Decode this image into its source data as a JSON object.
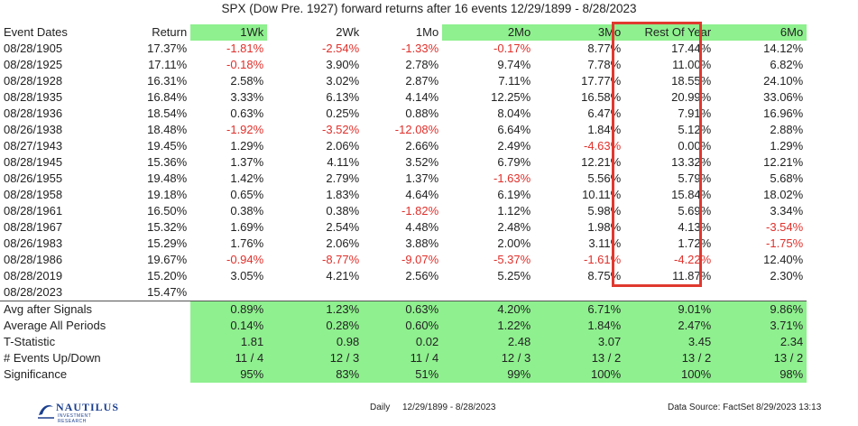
{
  "title": "SPX (Dow Pre. 1927) forward returns after 16 events 12/29/1899 - 8/28/2023",
  "colors": {
    "highlight_fill": "#8ef08e",
    "negative": "#e0302b",
    "box": "#e0392f",
    "brand": "#1b3f8f"
  },
  "chart_data": {
    "type": "table",
    "title": "SPX (Dow Pre. 1927) forward returns after 16 events 12/29/1899 - 8/28/2023",
    "columns": [
      "Event Dates",
      "Return",
      "1Wk",
      "2Wk",
      "1Mo",
      "2Mo",
      "3Mo",
      "Rest Of Year",
      "6Mo"
    ],
    "rows": [
      [
        "08/28/1905",
        "17.37%",
        "-1.81%",
        "-2.54%",
        "-1.33%",
        "-0.17%",
        "8.77%",
        "17.44%",
        "14.12%"
      ],
      [
        "08/28/1925",
        "17.11%",
        "-0.18%",
        "3.90%",
        "2.78%",
        "9.74%",
        "7.78%",
        "11.00%",
        "6.82%"
      ],
      [
        "08/28/1928",
        "16.31%",
        "2.58%",
        "3.02%",
        "2.87%",
        "7.11%",
        "17.77%",
        "18.55%",
        "24.10%"
      ],
      [
        "08/28/1935",
        "16.84%",
        "3.33%",
        "6.13%",
        "4.14%",
        "12.25%",
        "16.58%",
        "20.99%",
        "33.06%"
      ],
      [
        "08/28/1936",
        "18.54%",
        "0.63%",
        "0.25%",
        "0.88%",
        "8.04%",
        "6.47%",
        "7.91%",
        "16.96%"
      ],
      [
        "08/26/1938",
        "18.48%",
        "-1.92%",
        "-3.52%",
        "-12.08%",
        "6.64%",
        "1.84%",
        "5.12%",
        "2.88%"
      ],
      [
        "08/27/1943",
        "19.45%",
        "1.29%",
        "2.06%",
        "2.66%",
        "2.49%",
        "-4.63%",
        "0.00%",
        "1.29%"
      ],
      [
        "08/28/1945",
        "15.36%",
        "1.37%",
        "4.11%",
        "3.52%",
        "6.79%",
        "12.21%",
        "13.32%",
        "12.21%"
      ],
      [
        "08/26/1955",
        "19.48%",
        "1.42%",
        "2.79%",
        "1.37%",
        "-1.63%",
        "5.56%",
        "5.79%",
        "5.68%"
      ],
      [
        "08/28/1958",
        "19.18%",
        "0.65%",
        "1.83%",
        "4.64%",
        "6.19%",
        "10.11%",
        "15.84%",
        "18.02%"
      ],
      [
        "08/28/1961",
        "16.50%",
        "0.38%",
        "0.38%",
        "-1.82%",
        "1.12%",
        "5.98%",
        "5.69%",
        "3.34%"
      ],
      [
        "08/28/1967",
        "15.32%",
        "1.69%",
        "2.54%",
        "4.48%",
        "2.48%",
        "1.98%",
        "4.13%",
        "-3.54%"
      ],
      [
        "08/26/1983",
        "15.29%",
        "1.76%",
        "2.06%",
        "3.88%",
        "2.00%",
        "3.11%",
        "1.72%",
        "-1.75%"
      ],
      [
        "08/28/1986",
        "19.67%",
        "-0.94%",
        "-8.77%",
        "-9.07%",
        "-5.37%",
        "-1.61%",
        "-4.22%",
        "12.40%"
      ],
      [
        "08/28/2019",
        "15.20%",
        "3.05%",
        "4.21%",
        "2.56%",
        "5.25%",
        "8.75%",
        "11.87%",
        "2.30%"
      ],
      [
        "08/28/2023",
        "15.47%",
        "",
        "",
        "",
        "",
        "",
        "",
        ""
      ]
    ],
    "summary": [
      [
        "Avg after Signals",
        "",
        "0.89%",
        "1.23%",
        "0.63%",
        "4.20%",
        "6.71%",
        "9.01%",
        "9.86%"
      ],
      [
        "Average All Periods",
        "",
        "0.14%",
        "0.28%",
        "0.60%",
        "1.22%",
        "1.84%",
        "2.47%",
        "3.71%"
      ],
      [
        "T-Statistic",
        "",
        "1.81",
        "0.98",
        "0.02",
        "2.48",
        "3.07",
        "3.45",
        "2.34"
      ],
      [
        "# Events Up/Down",
        "",
        "11 / 4",
        "12 / 3",
        "11 / 4",
        "12 / 3",
        "13 / 2",
        "13 / 2",
        "13 / 2"
      ],
      [
        "Significance",
        "",
        "95%",
        "83%",
        "51%",
        "99%",
        "100%",
        "100%",
        "98%"
      ]
    ],
    "highlighted_columns": [
      "1Wk",
      "2Mo",
      "3Mo",
      "Rest Of Year",
      "6Mo"
    ],
    "boxed_column": "Rest Of Year"
  },
  "footer": {
    "logo_text": "NAUTILUS",
    "logo_sub": "INVESTMENT RESEARCH",
    "frequency": "Daily",
    "range": "12/29/1899 - 8/28/2023",
    "source": "Data Source: FactSet",
    "timestamp": "8/29/2023 13:13"
  }
}
